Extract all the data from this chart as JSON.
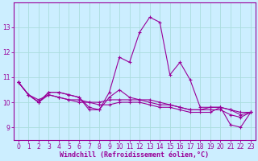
{
  "xlabel": "Windchill (Refroidissement éolien,°C)",
  "bg_color": "#cceeff",
  "line_color": "#990099",
  "grid_color": "#aadddd",
  "x": [
    0,
    1,
    2,
    3,
    4,
    5,
    6,
    7,
    8,
    9,
    10,
    11,
    12,
    13,
    14,
    15,
    16,
    17,
    18,
    19,
    20,
    21,
    22,
    23
  ],
  "series": [
    [
      10.8,
      10.3,
      10.0,
      10.4,
      10.4,
      10.3,
      10.2,
      9.7,
      9.7,
      10.4,
      11.8,
      11.6,
      12.8,
      13.4,
      13.2,
      11.1,
      11.6,
      10.9,
      9.8,
      9.8,
      9.8,
      9.1,
      9.0,
      9.6
    ],
    [
      10.8,
      10.3,
      10.0,
      10.4,
      10.4,
      10.3,
      10.2,
      9.8,
      9.7,
      10.2,
      10.5,
      10.2,
      10.1,
      10.1,
      10.0,
      9.9,
      9.8,
      9.7,
      9.7,
      9.7,
      9.7,
      9.5,
      9.4,
      9.6
    ],
    [
      10.8,
      10.3,
      10.0,
      10.3,
      10.2,
      10.1,
      10.0,
      10.0,
      10.0,
      10.1,
      10.1,
      10.1,
      10.1,
      10.0,
      9.9,
      9.9,
      9.8,
      9.7,
      9.7,
      9.8,
      9.8,
      9.7,
      9.6,
      9.6
    ],
    [
      10.8,
      10.3,
      10.1,
      10.3,
      10.2,
      10.1,
      10.1,
      10.0,
      9.9,
      9.9,
      10.0,
      10.0,
      10.0,
      9.9,
      9.8,
      9.8,
      9.7,
      9.6,
      9.6,
      9.6,
      9.8,
      9.7,
      9.5,
      9.6
    ]
  ],
  "ylim": [
    8.5,
    14.0
  ],
  "yticks": [
    9,
    10,
    11,
    12,
    13
  ],
  "xticks": [
    0,
    1,
    2,
    3,
    4,
    5,
    6,
    7,
    8,
    9,
    10,
    11,
    12,
    13,
    14,
    15,
    16,
    17,
    18,
    19,
    20,
    21,
    22,
    23
  ],
  "marker": "+",
  "linewidth": 0.8,
  "markersize": 3,
  "tick_fontsize": 5.5,
  "xlabel_fontsize": 6.0,
  "spine_lw": 0.8
}
